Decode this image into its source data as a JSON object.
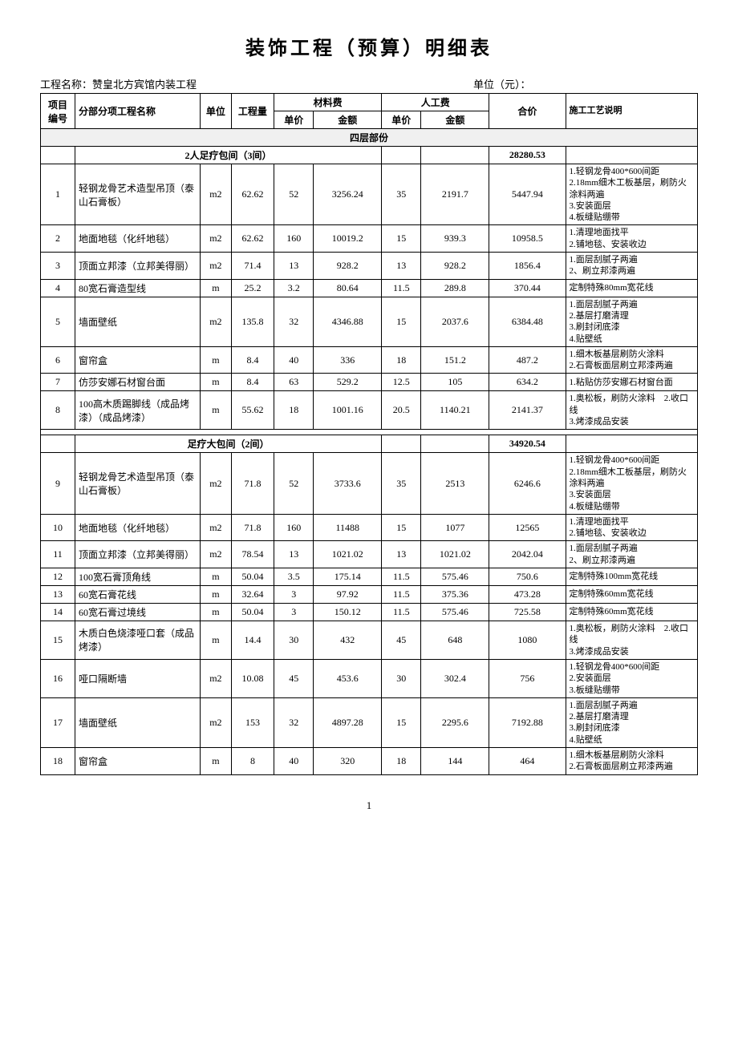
{
  "title": "装饰工程（预算）明细表",
  "project_label": "工程名称：",
  "project_name": "赞皇北方宾馆内装工程",
  "unit_label": "单位（元）：",
  "page_number": "1",
  "headers": {
    "id": "项目编号",
    "name": "分部分项工程名称",
    "unit": "单位",
    "qty": "工程量",
    "material": "材料费",
    "labor": "人工费",
    "price": "单价",
    "amount": "金额",
    "total": "合价",
    "desc": "施工工艺说明"
  },
  "section_title": "四层部份",
  "subsection1": {
    "title": "2人足疗包间（3间）",
    "total": "28280.53"
  },
  "subsection2": {
    "title": "足疗大包间（2间）",
    "total": "34920.54"
  },
  "rows1": [
    {
      "id": "1",
      "name": "轻钢龙骨艺术造型吊顶（泰山石膏板）",
      "unit": "m2",
      "qty": "62.62",
      "mprice": "52",
      "mamount": "3256.24",
      "lprice": "35",
      "lamount": "2191.7",
      "total": "5447.94",
      "desc": "1.轻钢龙骨400*600间距\n2.18mm细木工板基层，刷防火涂料两遍\n3.安装面层\n4.板缝贴绷带"
    },
    {
      "id": "2",
      "name": "地面地毯（化纤地毯）",
      "unit": "m2",
      "qty": "62.62",
      "mprice": "160",
      "mamount": "10019.2",
      "lprice": "15",
      "lamount": "939.3",
      "total": "10958.5",
      "desc": "1.清理地面找平\n2.铺地毯、安装收边"
    },
    {
      "id": "3",
      "name": "顶面立邦漆（立邦美得丽）",
      "unit": "m2",
      "qty": "71.4",
      "mprice": "13",
      "mamount": "928.2",
      "lprice": "13",
      "lamount": "928.2",
      "total": "1856.4",
      "desc": "1.面层刮腻子两遍\n2、刷立邦漆两遍"
    },
    {
      "id": "4",
      "name": "80宽石膏造型线",
      "unit": "m",
      "qty": "25.2",
      "mprice": "3.2",
      "mamount": "80.64",
      "lprice": "11.5",
      "lamount": "289.8",
      "total": "370.44",
      "desc": "定制特殊80mm宽花线"
    },
    {
      "id": "5",
      "name": "墙面壁纸",
      "unit": "m2",
      "qty": "135.8",
      "mprice": "32",
      "mamount": "4346.88",
      "lprice": "15",
      "lamount": "2037.6",
      "total": "6384.48",
      "desc": "1.面层刮腻子两遍\n2.基层打磨清理\n3.刷封闭底漆\n4.贴壁纸"
    },
    {
      "id": "6",
      "name": "窗帘盒",
      "unit": "m",
      "qty": "8.4",
      "mprice": "40",
      "mamount": "336",
      "lprice": "18",
      "lamount": "151.2",
      "total": "487.2",
      "desc": "1.细木板基层刷防火涂料\n2.石膏板面层刷立邦漆两遍"
    },
    {
      "id": "7",
      "name": "仿莎安娜石材窗台面",
      "unit": "m",
      "qty": "8.4",
      "mprice": "63",
      "mamount": "529.2",
      "lprice": "12.5",
      "lamount": "105",
      "total": "634.2",
      "desc": "1.粘贴仿莎安娜石材窗台面"
    },
    {
      "id": "8",
      "name": "100高木质踢脚线（成品烤漆）（成品烤漆）",
      "unit": "m",
      "qty": "55.62",
      "mprice": "18",
      "mamount": "1001.16",
      "lprice": "20.5",
      "lamount": "1140.21",
      "total": "2141.37",
      "desc": "1.奥松板，刷防火涂料　2.收口线\n3.烤漆成品安装"
    }
  ],
  "rows2": [
    {
      "id": "9",
      "name": "轻钢龙骨艺术造型吊顶（泰山石膏板）",
      "unit": "m2",
      "qty": "71.8",
      "mprice": "52",
      "mamount": "3733.6",
      "lprice": "35",
      "lamount": "2513",
      "total": "6246.6",
      "desc": "1.轻钢龙骨400*600间距\n2.18mm细木工板基层，刷防火涂料两遍\n3.安装面层\n4.板缝贴绷带"
    },
    {
      "id": "10",
      "name": "地面地毯（化纤地毯）",
      "unit": "m2",
      "qty": "71.8",
      "mprice": "160",
      "mamount": "11488",
      "lprice": "15",
      "lamount": "1077",
      "total": "12565",
      "desc": "1.清理地面找平\n2.铺地毯、安装收边"
    },
    {
      "id": "11",
      "name": "顶面立邦漆（立邦美得丽）",
      "unit": "m2",
      "qty": "78.54",
      "mprice": "13",
      "mamount": "1021.02",
      "lprice": "13",
      "lamount": "1021.02",
      "total": "2042.04",
      "desc": "1.面层刮腻子两遍\n2、刷立邦漆两遍"
    },
    {
      "id": "12",
      "name": "100宽石膏顶角线",
      "unit": "m",
      "qty": "50.04",
      "mprice": "3.5",
      "mamount": "175.14",
      "lprice": "11.5",
      "lamount": "575.46",
      "total": "750.6",
      "desc": "定制特殊100mm宽花线"
    },
    {
      "id": "13",
      "name": "60宽石膏花线",
      "unit": "m",
      "qty": "32.64",
      "mprice": "3",
      "mamount": "97.92",
      "lprice": "11.5",
      "lamount": "375.36",
      "total": "473.28",
      "desc": "定制特殊60mm宽花线"
    },
    {
      "id": "14",
      "name": "60宽石膏过境线",
      "unit": "m",
      "qty": "50.04",
      "mprice": "3",
      "mamount": "150.12",
      "lprice": "11.5",
      "lamount": "575.46",
      "total": "725.58",
      "desc": "定制特殊60mm宽花线"
    },
    {
      "id": "15",
      "name": "木质白色烧漆哑口套（成品烤漆）",
      "unit": "m",
      "qty": "14.4",
      "mprice": "30",
      "mamount": "432",
      "lprice": "45",
      "lamount": "648",
      "total": "1080",
      "desc": "1.奥松板，刷防火涂料　2.收口线\n3.烤漆成品安装"
    },
    {
      "id": "16",
      "name": "哑口隔断墙",
      "unit": "m2",
      "qty": "10.08",
      "mprice": "45",
      "mamount": "453.6",
      "lprice": "30",
      "lamount": "302.4",
      "total": "756",
      "desc": "1.轻钢龙骨400*600间距\n2.安装面层\n3.板缝贴绷带"
    },
    {
      "id": "17",
      "name": "墙面壁纸",
      "unit": "m2",
      "qty": "153",
      "mprice": "32",
      "mamount": "4897.28",
      "lprice": "15",
      "lamount": "2295.6",
      "total": "7192.88",
      "desc": "1.面层刮腻子两遍\n2.基层打磨清理\n3.刷封闭底漆\n4.贴壁纸"
    },
    {
      "id": "18",
      "name": "窗帘盒",
      "unit": "m",
      "qty": "8",
      "mprice": "40",
      "mamount": "320",
      "lprice": "18",
      "lamount": "144",
      "total": "464",
      "desc": "1.细木板基层刷防火涂料\n2.石膏板面层刷立邦漆两遍"
    }
  ]
}
